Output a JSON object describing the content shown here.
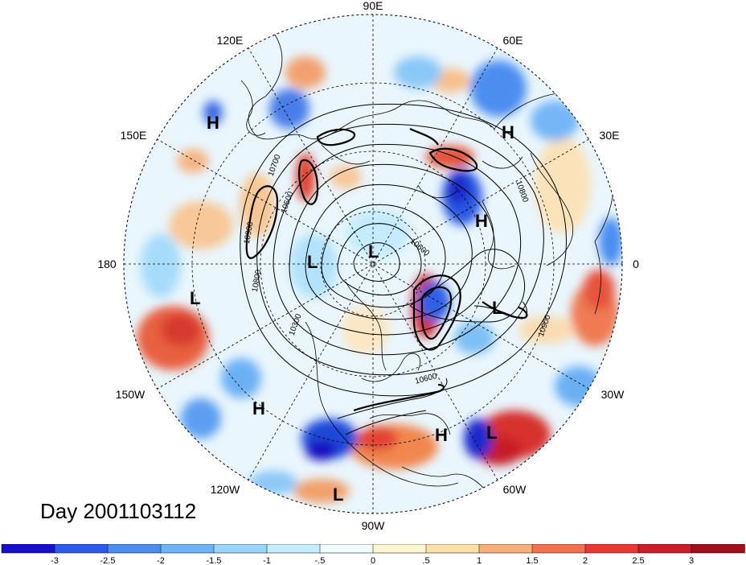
{
  "title": "Day 2001103112",
  "longitude_labels": [
    "90E",
    "60E",
    "30E",
    "0",
    "30W",
    "60W",
    "90W",
    "120W",
    "150W",
    "180",
    "150E",
    "120E"
  ],
  "pressure_centers": [
    {
      "type": "H"
    },
    {
      "type": "H"
    },
    {
      "type": "H"
    },
    {
      "type": "L"
    },
    {
      "type": "L"
    },
    {
      "type": "L"
    },
    {
      "type": "L"
    },
    {
      "type": "H"
    },
    {
      "type": "H"
    },
    {
      "type": "L"
    },
    {
      "type": "L"
    }
  ],
  "contour_labels": [
    "10800",
    "10900",
    "10900",
    "10800",
    "10700",
    "10600",
    "10500",
    "10300",
    "10600"
  ],
  "colorbar": {
    "ticks": [
      "-3",
      "-2.5",
      "-2",
      "-1.5",
      "-1",
      "-.5",
      "0",
      ".5",
      "1",
      "1.5",
      "2",
      "2.5",
      "3"
    ],
    "colors": [
      "#1a10c8",
      "#2d5ae6",
      "#4a8ef0",
      "#6cb4f6",
      "#9ad6fa",
      "#c8eefe",
      "#f0fbfe",
      "#fdf6d2",
      "#fde0a8",
      "#f8b07a",
      "#f07050",
      "#e63a36",
      "#c81e28",
      "#a0101c"
    ]
  }
}
